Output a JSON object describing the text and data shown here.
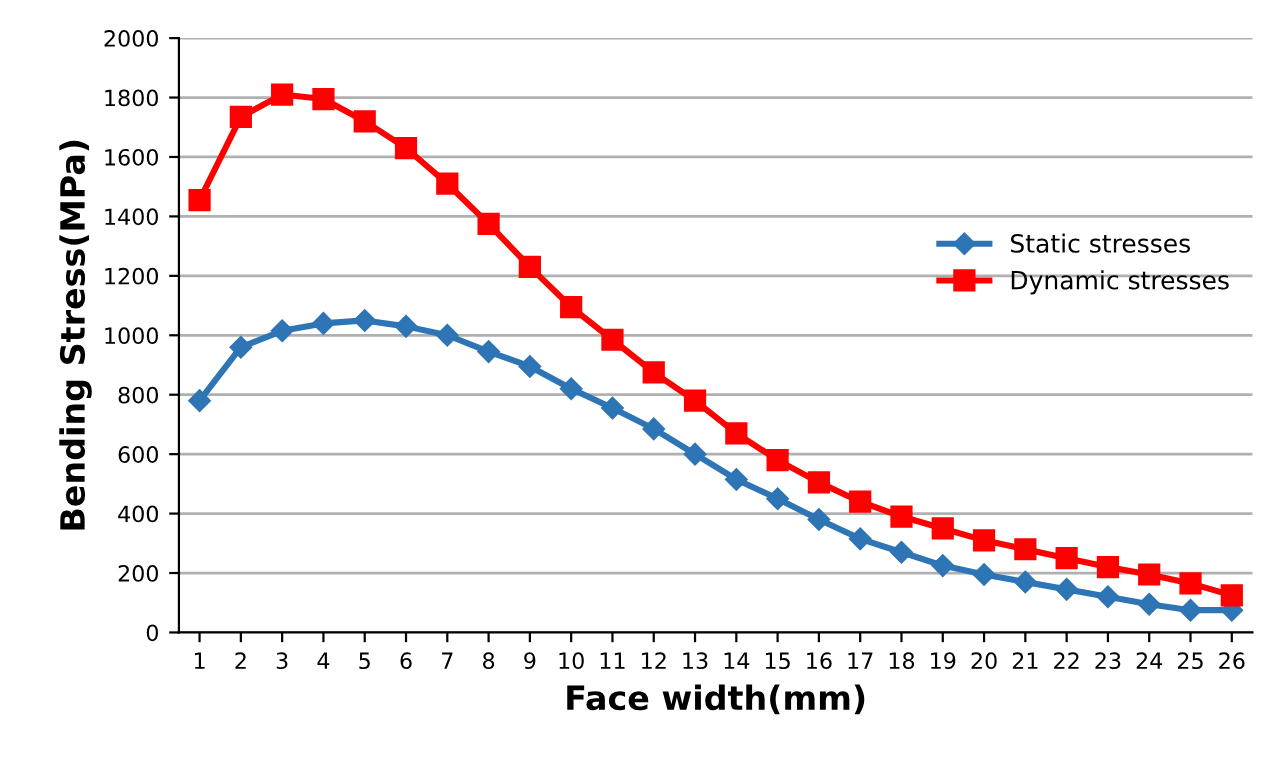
{
  "chart_data": {
    "type": "line",
    "xlabel": "Face width(mm)",
    "ylabel": "Bending Stress(MPa)",
    "categories": [
      "1",
      "2",
      "3",
      "4",
      "5",
      "6",
      "7",
      "8",
      "9",
      "10",
      "11",
      "12",
      "13",
      "14",
      "15",
      "16",
      "17",
      "18",
      "19",
      "20",
      "21",
      "22",
      "23",
      "24",
      "25",
      "26"
    ],
    "series": [
      {
        "name": "Static stresses",
        "color": "#2e75b6",
        "marker": "diamond",
        "values": [
          780,
          960,
          1015,
          1040,
          1050,
          1030,
          1000,
          945,
          895,
          820,
          755,
          685,
          600,
          515,
          450,
          380,
          315,
          270,
          225,
          195,
          170,
          145,
          120,
          95,
          75,
          75
        ]
      },
      {
        "name": "Dynamic stresses",
        "color": "#ff0000",
        "marker": "square",
        "values": [
          1455,
          1735,
          1810,
          1795,
          1720,
          1630,
          1510,
          1375,
          1230,
          1095,
          985,
          875,
          780,
          670,
          580,
          505,
          440,
          390,
          350,
          310,
          280,
          250,
          220,
          195,
          165,
          125
        ]
      }
    ],
    "ylim": [
      0,
      2000
    ],
    "yticks": [
      0,
      200,
      400,
      600,
      800,
      1000,
      1200,
      1400,
      1600,
      1800,
      2000
    ],
    "grid": "y",
    "legend": "right",
    "line_style": "solid"
  }
}
